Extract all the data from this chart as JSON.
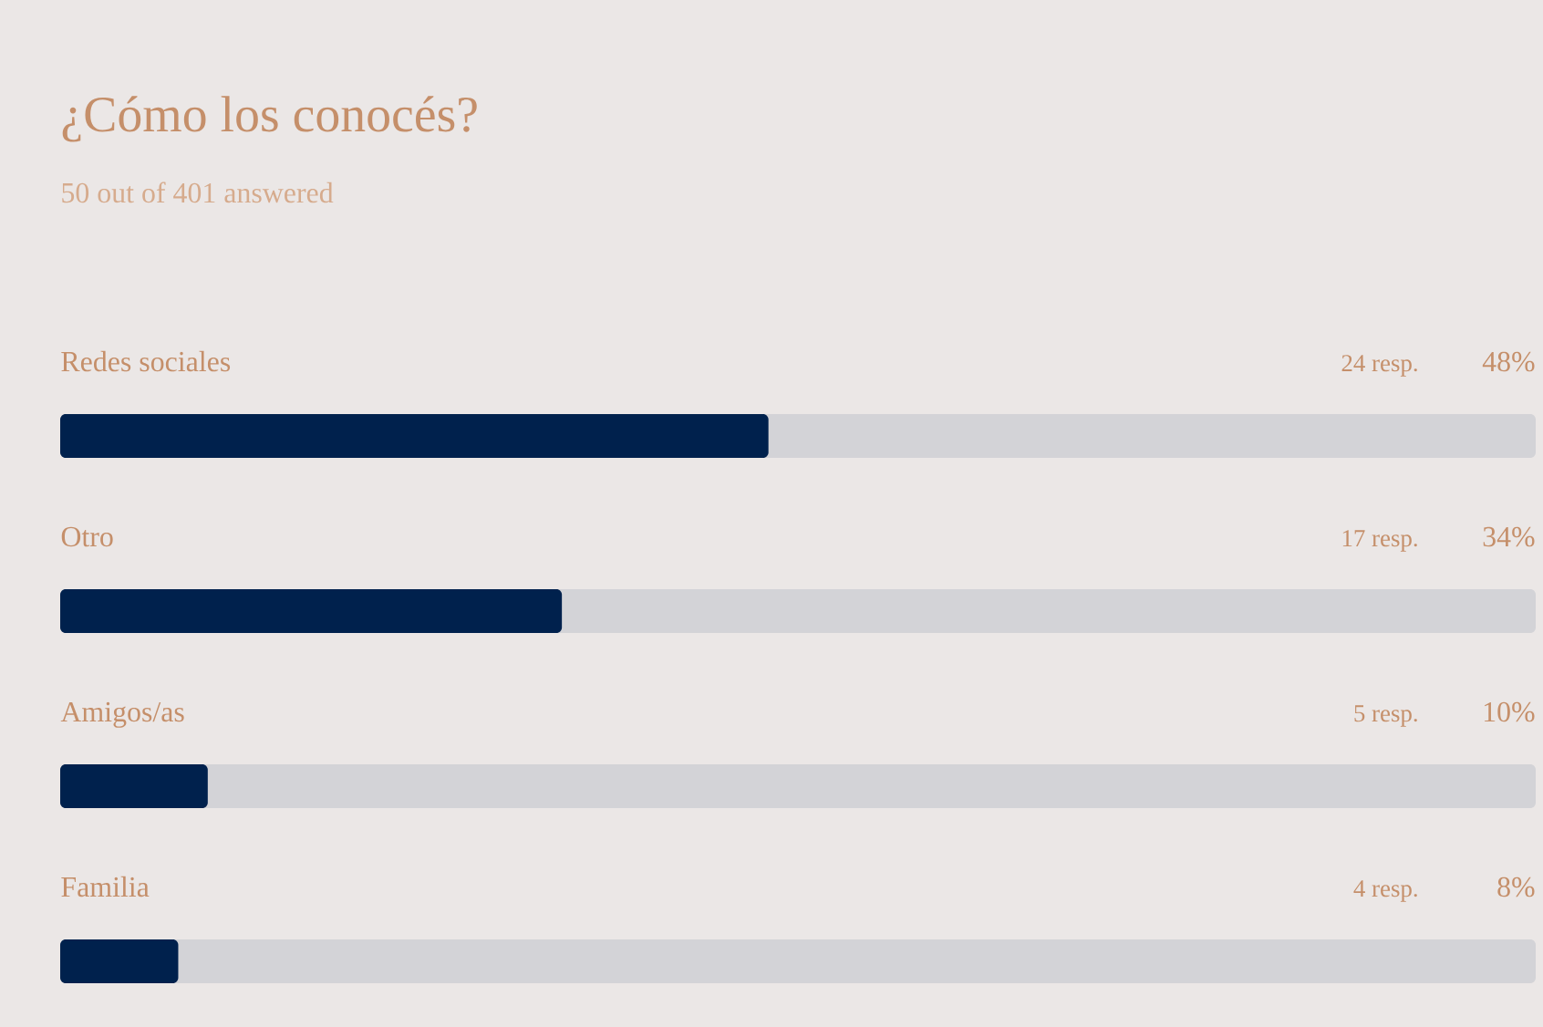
{
  "chart_data": {
    "type": "bar",
    "orientation": "horizontal",
    "title": "¿Cómo los conocés?",
    "subtitle": "50 out of 401 answered",
    "categories": [
      "Redes sociales",
      "Otro",
      "Amigos/as",
      "Familia"
    ],
    "values": [
      48,
      34,
      10,
      8
    ],
    "color": "#00214d",
    "xlim": [
      0,
      100
    ],
    "tick_labels": false,
    "value_labels": [
      "48%",
      "34%",
      "10%",
      "8%"
    ],
    "annotations": [
      "24 resp.",
      "17 resp.",
      "5 resp.",
      "4 resp."
    ]
  }
}
